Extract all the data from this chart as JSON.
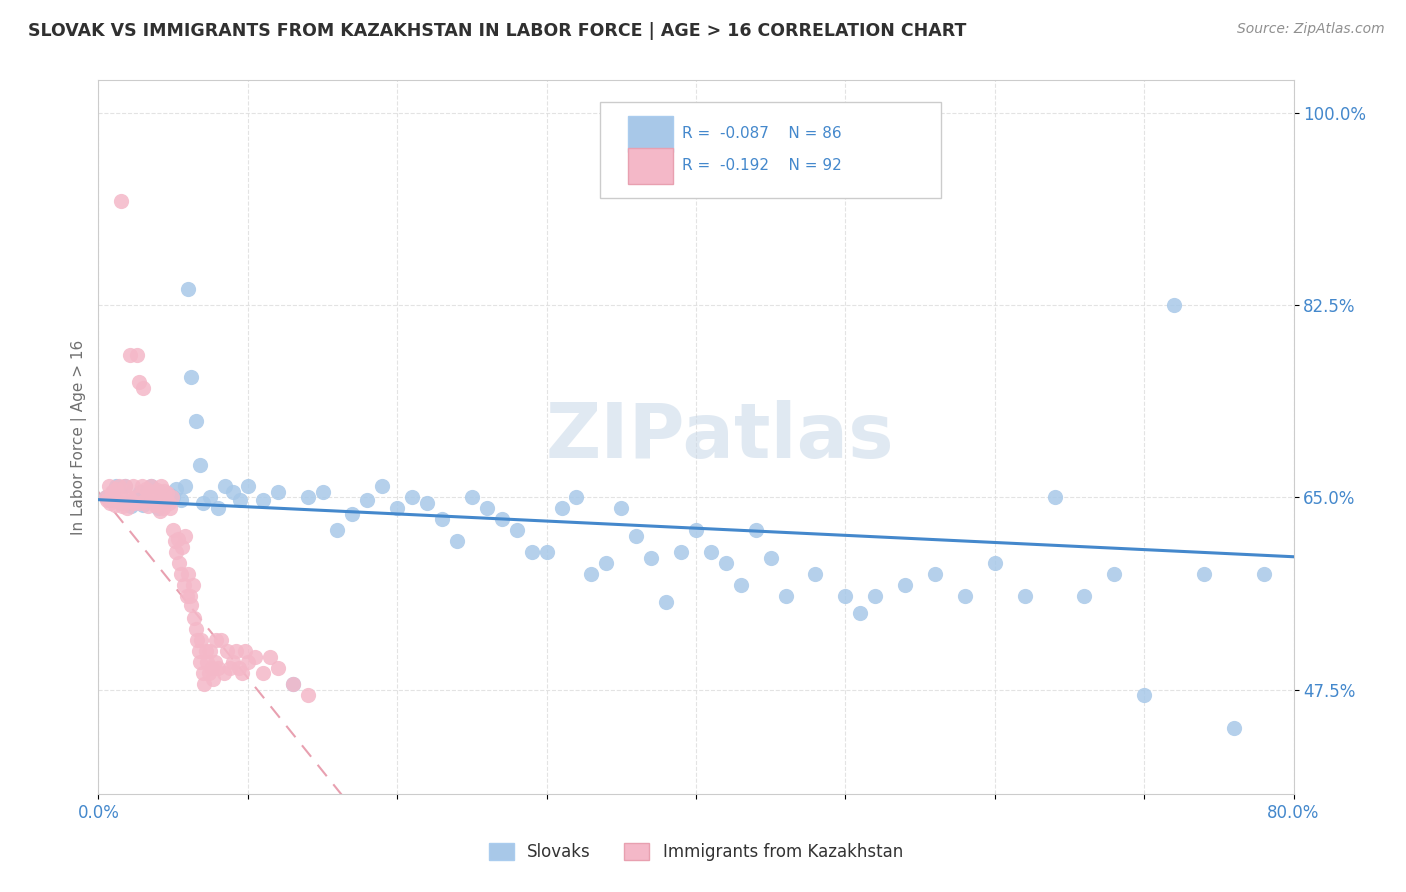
{
  "title": "SLOVAK VS IMMIGRANTS FROM KAZAKHSTAN IN LABOR FORCE | AGE > 16 CORRELATION CHART",
  "source_text": "Source: ZipAtlas.com",
  "ylabel": "In Labor Force | Age > 16",
  "xlim": [
    0.0,
    0.8
  ],
  "ylim": [
    0.38,
    1.03
  ],
  "yticks": [
    0.475,
    0.65,
    0.825,
    1.0
  ],
  "ytick_labels": [
    "47.5%",
    "65.0%",
    "82.5%",
    "100.0%"
  ],
  "xticks": [
    0.0,
    0.1,
    0.2,
    0.3,
    0.4,
    0.5,
    0.6,
    0.7,
    0.8
  ],
  "watermark_text": "ZIPatlas",
  "slovaks_color": "#a8c8e8",
  "kaz_color": "#f4b8c8",
  "trendline_slovak_color": "#4488cc",
  "trendline_kaz_color": "#e8a0b0",
  "R_slovak": -0.087,
  "N_slovak": 86,
  "R_kaz": -0.192,
  "N_kaz": 92,
  "background_color": "#ffffff",
  "axis_label_color": "#4488cc",
  "title_color": "#303030",
  "source_color": "#909090",
  "ylabel_color": "#707070",
  "legend_border_color": "#cccccc",
  "grid_color": "#e0e0e0",
  "slovak_x": [
    0.005,
    0.008,
    0.01,
    0.012,
    0.015,
    0.018,
    0.02,
    0.022,
    0.025,
    0.028,
    0.03,
    0.032,
    0.035,
    0.038,
    0.04,
    0.042,
    0.045,
    0.048,
    0.05,
    0.052,
    0.055,
    0.058,
    0.06,
    0.062,
    0.065,
    0.068,
    0.07,
    0.075,
    0.08,
    0.085,
    0.09,
    0.095,
    0.1,
    0.11,
    0.12,
    0.13,
    0.14,
    0.15,
    0.16,
    0.17,
    0.18,
    0.19,
    0.2,
    0.21,
    0.22,
    0.23,
    0.24,
    0.25,
    0.26,
    0.27,
    0.28,
    0.29,
    0.3,
    0.31,
    0.32,
    0.33,
    0.34,
    0.35,
    0.36,
    0.37,
    0.38,
    0.39,
    0.4,
    0.41,
    0.42,
    0.43,
    0.44,
    0.45,
    0.46,
    0.48,
    0.5,
    0.51,
    0.52,
    0.54,
    0.56,
    0.58,
    0.6,
    0.62,
    0.64,
    0.66,
    0.68,
    0.7,
    0.72,
    0.74,
    0.76,
    0.78
  ],
  "slovak_y": [
    0.65,
    0.648,
    0.655,
    0.66,
    0.645,
    0.66,
    0.645,
    0.642,
    0.65,
    0.655,
    0.643,
    0.648,
    0.66,
    0.645,
    0.64,
    0.655,
    0.648,
    0.652,
    0.65,
    0.658,
    0.648,
    0.66,
    0.84,
    0.76,
    0.72,
    0.68,
    0.645,
    0.65,
    0.64,
    0.66,
    0.655,
    0.648,
    0.66,
    0.648,
    0.655,
    0.48,
    0.65,
    0.655,
    0.62,
    0.635,
    0.648,
    0.66,
    0.64,
    0.65,
    0.645,
    0.63,
    0.61,
    0.65,
    0.64,
    0.63,
    0.62,
    0.6,
    0.6,
    0.64,
    0.65,
    0.58,
    0.59,
    0.64,
    0.615,
    0.595,
    0.555,
    0.6,
    0.62,
    0.6,
    0.59,
    0.57,
    0.62,
    0.595,
    0.56,
    0.58,
    0.56,
    0.545,
    0.56,
    0.57,
    0.58,
    0.56,
    0.59,
    0.56,
    0.65,
    0.56,
    0.58,
    0.47,
    0.825,
    0.58,
    0.44,
    0.58
  ],
  "kaz_x": [
    0.005,
    0.006,
    0.007,
    0.008,
    0.009,
    0.01,
    0.011,
    0.012,
    0.013,
    0.014,
    0.015,
    0.016,
    0.017,
    0.018,
    0.019,
    0.02,
    0.021,
    0.022,
    0.023,
    0.024,
    0.025,
    0.026,
    0.027,
    0.028,
    0.029,
    0.03,
    0.031,
    0.032,
    0.033,
    0.034,
    0.035,
    0.036,
    0.037,
    0.038,
    0.039,
    0.04,
    0.041,
    0.042,
    0.043,
    0.044,
    0.045,
    0.046,
    0.047,
    0.048,
    0.049,
    0.05,
    0.051,
    0.052,
    0.053,
    0.054,
    0.055,
    0.056,
    0.057,
    0.058,
    0.059,
    0.06,
    0.061,
    0.062,
    0.063,
    0.064,
    0.065,
    0.066,
    0.067,
    0.068,
    0.069,
    0.07,
    0.071,
    0.072,
    0.073,
    0.074,
    0.075,
    0.076,
    0.077,
    0.078,
    0.079,
    0.08,
    0.082,
    0.084,
    0.086,
    0.088,
    0.09,
    0.092,
    0.094,
    0.096,
    0.098,
    0.1,
    0.105,
    0.11,
    0.115,
    0.12,
    0.13,
    0.14
  ],
  "kaz_y": [
    0.65,
    0.648,
    0.66,
    0.645,
    0.655,
    0.65,
    0.643,
    0.658,
    0.647,
    0.66,
    0.92,
    0.642,
    0.648,
    0.66,
    0.64,
    0.65,
    0.78,
    0.648,
    0.66,
    0.645,
    0.65,
    0.78,
    0.755,
    0.645,
    0.66,
    0.75,
    0.648,
    0.658,
    0.642,
    0.655,
    0.66,
    0.648,
    0.65,
    0.643,
    0.657,
    0.645,
    0.638,
    0.66,
    0.64,
    0.656,
    0.648,
    0.654,
    0.645,
    0.64,
    0.65,
    0.62,
    0.61,
    0.6,
    0.612,
    0.59,
    0.58,
    0.605,
    0.57,
    0.615,
    0.56,
    0.58,
    0.56,
    0.552,
    0.57,
    0.54,
    0.53,
    0.52,
    0.51,
    0.5,
    0.52,
    0.49,
    0.48,
    0.51,
    0.5,
    0.49,
    0.51,
    0.495,
    0.485,
    0.5,
    0.52,
    0.495,
    0.52,
    0.49,
    0.51,
    0.495,
    0.5,
    0.51,
    0.495,
    0.49,
    0.51,
    0.5,
    0.505,
    0.49,
    0.505,
    0.495,
    0.48,
    0.47
  ]
}
